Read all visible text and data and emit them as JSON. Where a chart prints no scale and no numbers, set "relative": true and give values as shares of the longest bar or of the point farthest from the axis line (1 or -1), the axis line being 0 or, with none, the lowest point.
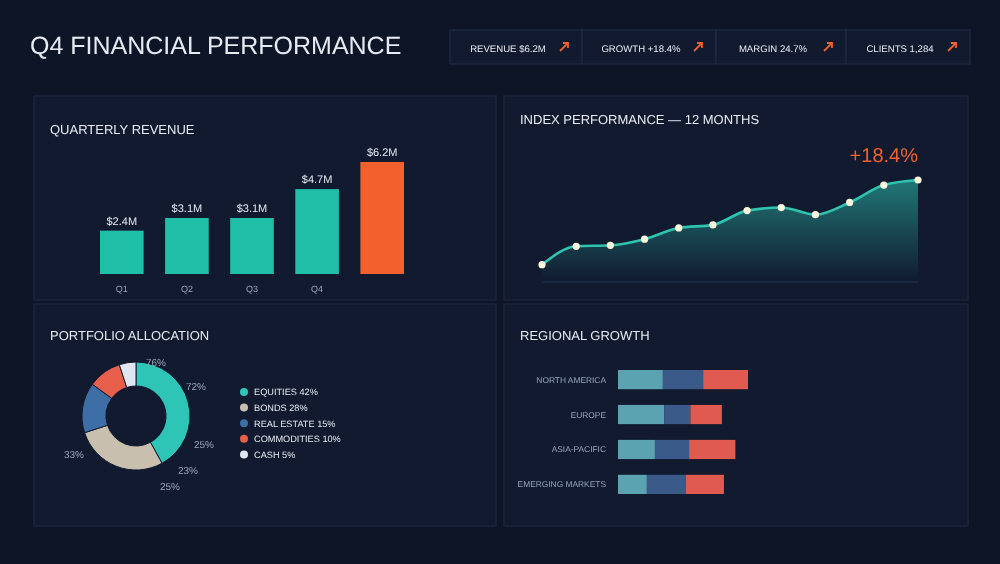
{
  "chart_data": [
    {
      "type": "other",
      "title": "Q4 FINANCIAL PERFORMANCE",
      "annotations": [
        "REVENUE $6.2M",
        "GROWTH +18.4%",
        "MARGIN 24.7%",
        "CLIENTS 1,284"
      ]
    },
    {
      "type": "bar",
      "title": "QUARTERLY REVENUE",
      "categories": [
        "Q1",
        "Q2",
        "Q3",
        "Q4",
        null
      ],
      "values": [
        2.4,
        3.1,
        3.1,
        4.7,
        6.2
      ],
      "value_labels": [
        "$2.4M",
        "$3.1M",
        "$3.1M",
        "$4.7M",
        "$6.2M"
      ],
      "colors": [
        "#1fbfa8",
        "#1fbfa8",
        "#1fbfa8",
        "#1fbfa8",
        "#f2612d"
      ]
    },
    {
      "type": "area",
      "title": "INDEX PERFORMANCE — 12 MONTHS",
      "relative": true,
      "marker": "circle",
      "categories": [
        null,
        null,
        null,
        null,
        null,
        null,
        null,
        null,
        null,
        null,
        null,
        null
      ],
      "series": [
        {
          "color": "#2ec4b0",
          "values": [
            0.17,
            0.35,
            0.36,
            0.42,
            0.53,
            0.56,
            0.7,
            0.73,
            0.66,
            0.78,
            0.95,
            1.0
          ]
        }
      ],
      "annotations": [
        "+18.4%"
      ]
    },
    {
      "type": "donut",
      "title": "PORTFOLIO ALLOCATION",
      "legend": "right",
      "categories": [
        "EQUITIES 42%",
        "BONDS 28%",
        "REAL ESTATE 15%",
        "COMMODITIES 10%",
        "CASH 5%"
      ],
      "values": [
        42,
        28,
        15,
        10,
        5
      ],
      "colors": [
        "#2ec4b6",
        "#c8bfae",
        "#3d6ea5",
        "#e8604c",
        "#e0e6ef"
      ],
      "annotations": [
        "76%",
        "72%",
        "25%",
        "23%",
        "25%",
        "33%"
      ]
    },
    {
      "type": "bar",
      "title": "REGIONAL GROWTH",
      "orientation": "horizontal",
      "stacked": true,
      "relative": true,
      "categories": [
        "NORTH AMERICA",
        "EUROPE",
        "ASIA-PACIFIC",
        "EMERGING MARKETS"
      ],
      "series": [
        {
          "color": "#5ba3b0",
          "values": [
            0.345,
            0.356,
            0.284,
            0.222
          ]
        },
        {
          "color": "#3a5a8a",
          "values": [
            0.31,
            0.201,
            0.263,
            0.299
          ]
        },
        {
          "color": "#e05a50",
          "values": [
            0.345,
            0.242,
            0.356,
            0.294
          ]
        }
      ]
    }
  ]
}
